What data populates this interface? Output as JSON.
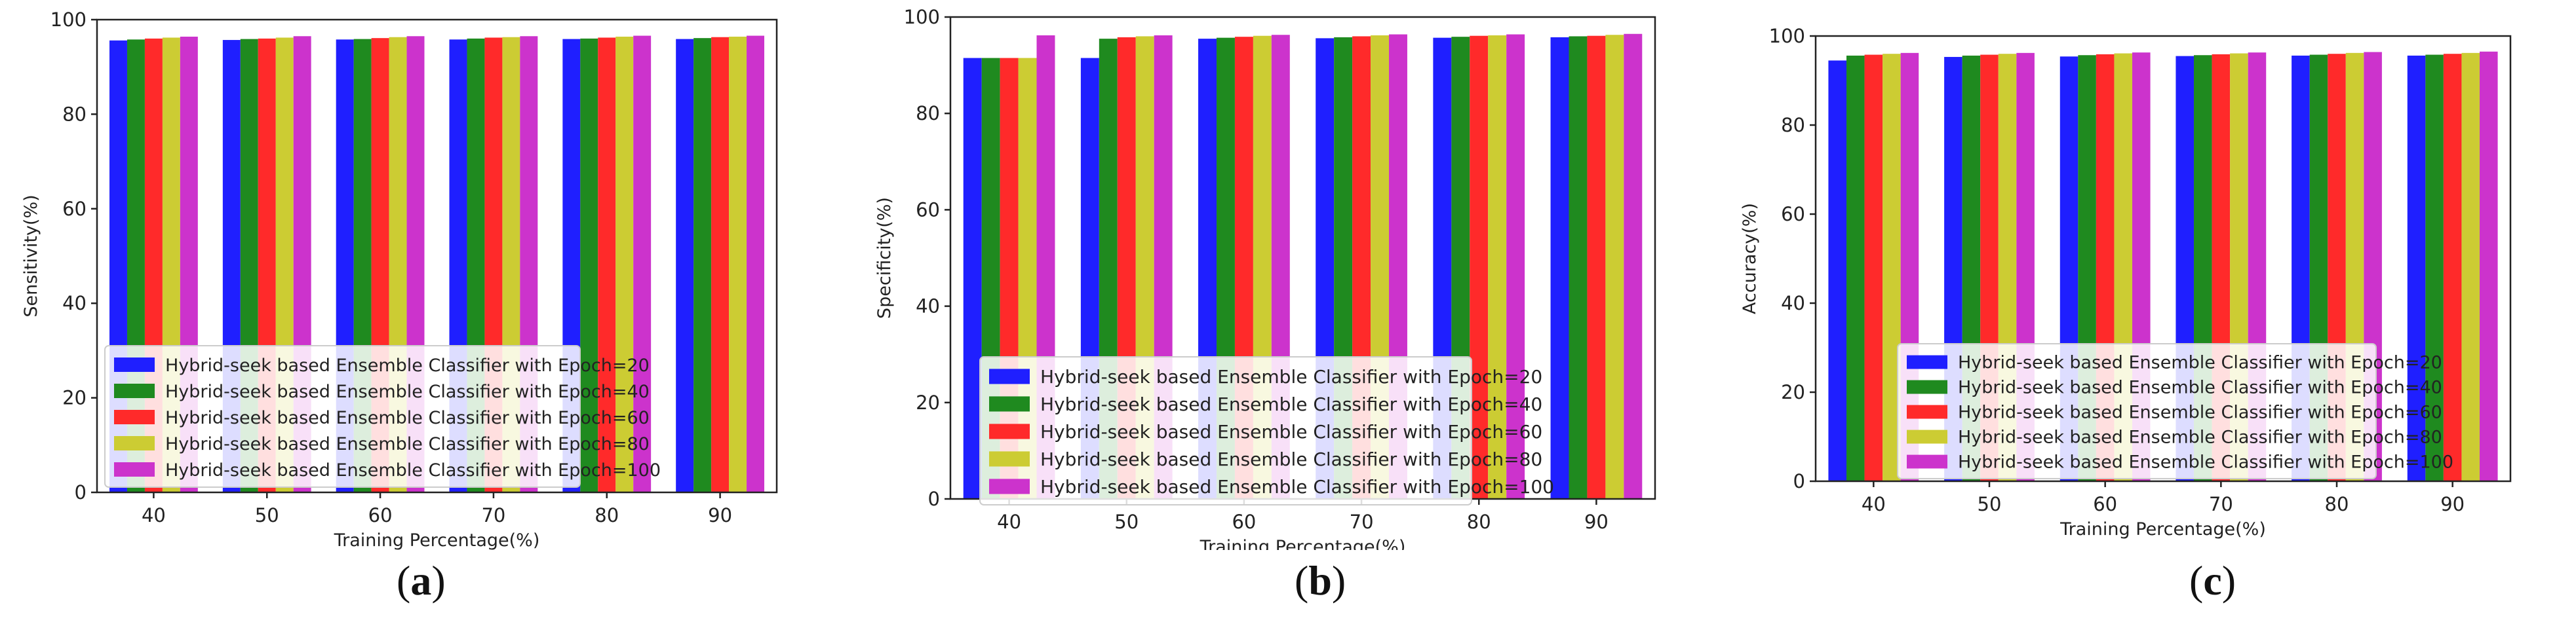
{
  "chart_data": [
    {
      "type": "bar",
      "panel": "(a)",
      "caption_letter": "a",
      "xlabel": "Training Percentage(%)",
      "ylabel": "Sensitivity(%)",
      "ylim": [
        0,
        100
      ],
      "yticks": [
        0,
        20,
        40,
        60,
        80,
        100
      ],
      "categories": [
        "40",
        "50",
        "60",
        "70",
        "80",
        "90"
      ],
      "legend_position": "lower-left",
      "series": [
        {
          "name": "Hybrid-seek based Ensemble Classifier with Epoch=20",
          "color": "#1f1fff",
          "values": [
            95.6,
            95.7,
            95.8,
            95.8,
            95.9,
            95.9
          ]
        },
        {
          "name": "Hybrid-seek based Ensemble Classifier with Epoch=40",
          "color": "#1f8a1f",
          "values": [
            95.8,
            95.9,
            95.9,
            96.0,
            96.0,
            96.1
          ]
        },
        {
          "name": "Hybrid-seek based Ensemble Classifier with Epoch=60",
          "color": "#ff2a2a",
          "values": [
            96.0,
            96.0,
            96.1,
            96.2,
            96.2,
            96.3
          ]
        },
        {
          "name": "Hybrid-seek based Ensemble Classifier with Epoch=80",
          "color": "#cccc33",
          "values": [
            96.2,
            96.2,
            96.3,
            96.3,
            96.4,
            96.4
          ]
        },
        {
          "name": "Hybrid-seek based Ensemble Classifier with Epoch=100",
          "color": "#cc33cc",
          "values": [
            96.4,
            96.5,
            96.5,
            96.5,
            96.6,
            96.6
          ]
        }
      ]
    },
    {
      "type": "bar",
      "panel": "(b)",
      "caption_letter": "b",
      "xlabel": "Training Percentage(%)",
      "ylabel": "Specificity(%)",
      "ylim": [
        0,
        100
      ],
      "yticks": [
        0,
        20,
        40,
        60,
        80,
        100
      ],
      "categories": [
        "40",
        "50",
        "60",
        "70",
        "80",
        "90"
      ],
      "legend_position": "lower-left",
      "series": [
        {
          "name": "Hybrid-seek based Ensemble Classifier with Epoch=20",
          "color": "#1f1fff",
          "values": [
            91.5,
            91.5,
            95.5,
            95.6,
            95.7,
            95.8
          ]
        },
        {
          "name": "Hybrid-seek based Ensemble Classifier with Epoch=40",
          "color": "#1f8a1f",
          "values": [
            91.5,
            95.5,
            95.7,
            95.8,
            95.9,
            96.0
          ]
        },
        {
          "name": "Hybrid-seek based Ensemble Classifier with Epoch=60",
          "color": "#ff2a2a",
          "values": [
            91.5,
            95.8,
            95.9,
            96.0,
            96.1,
            96.1
          ]
        },
        {
          "name": "Hybrid-seek based Ensemble Classifier with Epoch=80",
          "color": "#cccc33",
          "values": [
            91.5,
            96.0,
            96.1,
            96.2,
            96.2,
            96.3
          ]
        },
        {
          "name": "Hybrid-seek based Ensemble Classifier with Epoch=100",
          "color": "#cc33cc",
          "values": [
            96.2,
            96.2,
            96.3,
            96.4,
            96.4,
            96.5
          ]
        }
      ]
    },
    {
      "type": "bar",
      "panel": "(c)",
      "caption_letter": "c",
      "xlabel": "Training Percentage(%)",
      "ylabel": "Accuracy(%)",
      "ylim": [
        0,
        100
      ],
      "yticks": [
        0,
        20,
        40,
        60,
        80,
        100
      ],
      "categories": [
        "40",
        "50",
        "60",
        "70",
        "80",
        "90"
      ],
      "legend_position": "lower-left",
      "series": [
        {
          "name": "Hybrid-seek based Ensemble Classifier with Epoch=20",
          "color": "#1f1fff",
          "values": [
            94.5,
            95.3,
            95.4,
            95.5,
            95.6,
            95.6
          ]
        },
        {
          "name": "Hybrid-seek based Ensemble Classifier with Epoch=40",
          "color": "#1f8a1f",
          "values": [
            95.6,
            95.6,
            95.7,
            95.7,
            95.8,
            95.8
          ]
        },
        {
          "name": "Hybrid-seek based Ensemble Classifier with Epoch=60",
          "color": "#ff2a2a",
          "values": [
            95.8,
            95.8,
            95.9,
            95.9,
            96.0,
            96.0
          ]
        },
        {
          "name": "Hybrid-seek based Ensemble Classifier with Epoch=80",
          "color": "#cccc33",
          "values": [
            96.0,
            96.0,
            96.1,
            96.1,
            96.2,
            96.2
          ]
        },
        {
          "name": "Hybrid-seek based Ensemble Classifier with Epoch=100",
          "color": "#cc33cc",
          "values": [
            96.2,
            96.2,
            96.3,
            96.3,
            96.4,
            96.5
          ]
        }
      ]
    }
  ]
}
